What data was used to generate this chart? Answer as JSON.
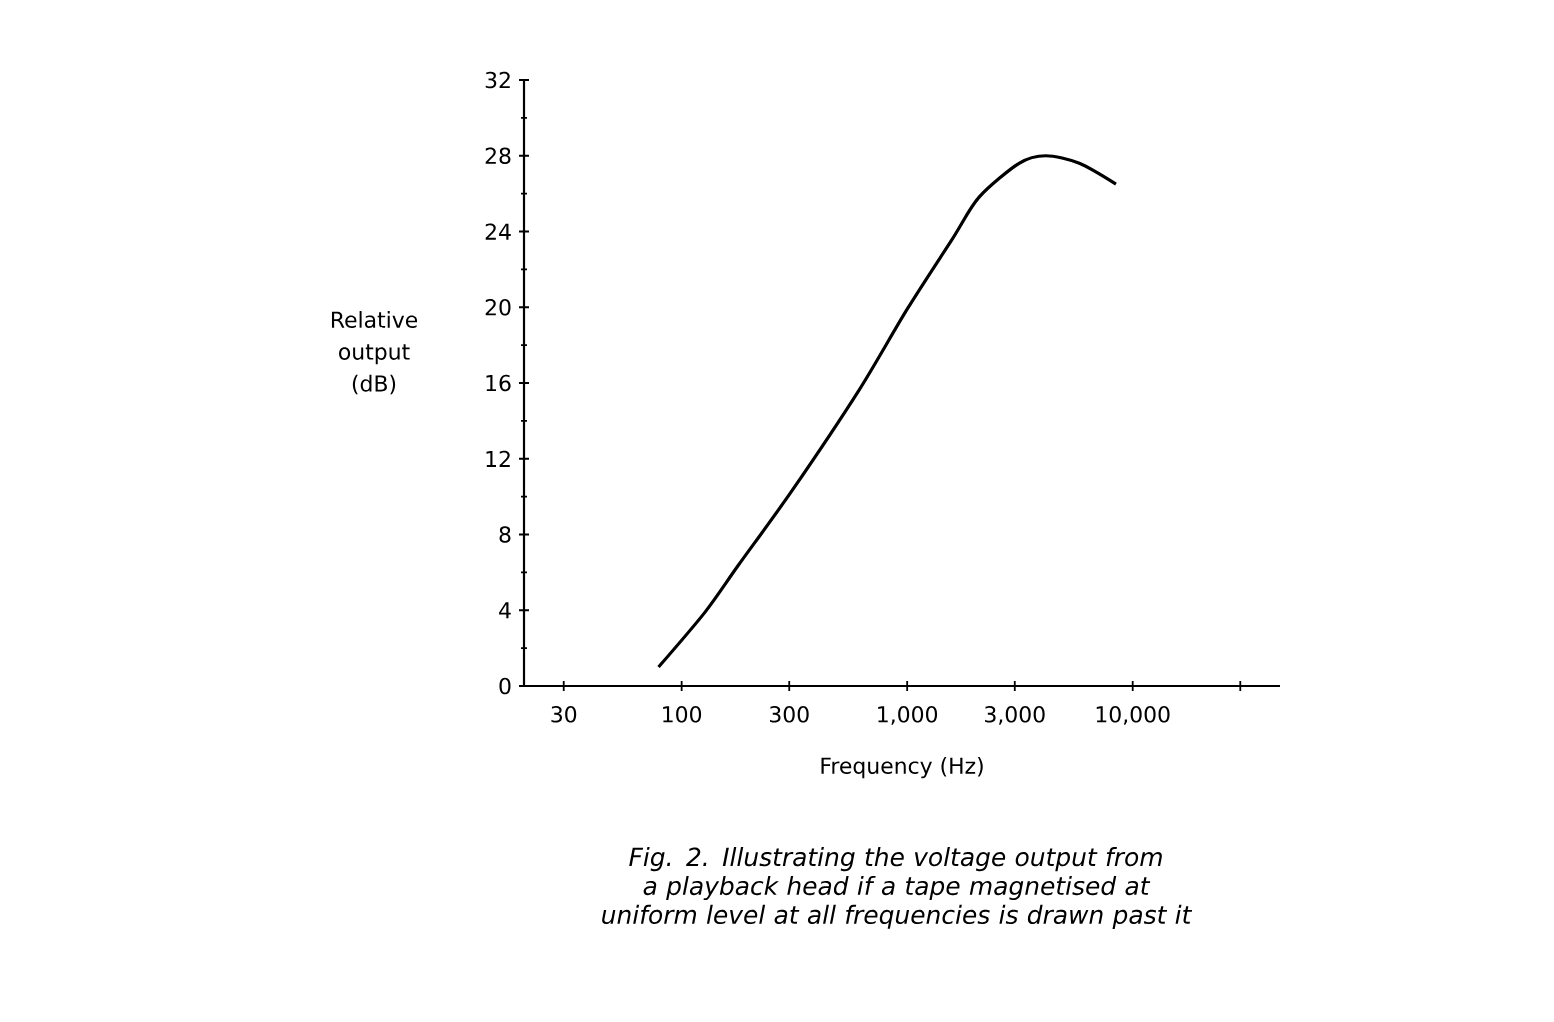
{
  "chart_data": {
    "type": "line",
    "xlabel": "Frequency (Hz)",
    "ylabel": "Relative output (dB)",
    "annotations": [
      "Fig. 2. Illustrating the voltage output from a playback head if a tape magnetised at uniform level at all frequencies is drawn past it"
    ],
    "log": "x",
    "color": "#000000",
    "x": [
      79,
      127,
      179,
      308,
      610,
      1000,
      1585,
      2080,
      3135,
      4120,
      5800,
      8430
    ],
    "values": [
      1,
      3.9,
      6.4,
      10.3,
      15.6,
      19.9,
      23.6,
      25.8,
      27.6,
      28,
      27.6,
      26.5
    ],
    "xlim": [
      20,
      45000
    ],
    "ylim": [
      0,
      32
    ],
    "xticks": [
      30,
      100,
      {
        "value": 300,
        "label": "300"
      },
      {
        "value": 1000,
        "label": "1,000"
      },
      {
        "value": 3000,
        "label": "3,000"
      },
      {
        "value": 10000,
        "label": "10,000"
      },
      {
        "value": 30000,
        "label": null
      }
    ],
    "yticks": [
      0,
      4,
      8,
      12,
      16,
      20,
      24,
      28,
      32
    ]
  }
}
